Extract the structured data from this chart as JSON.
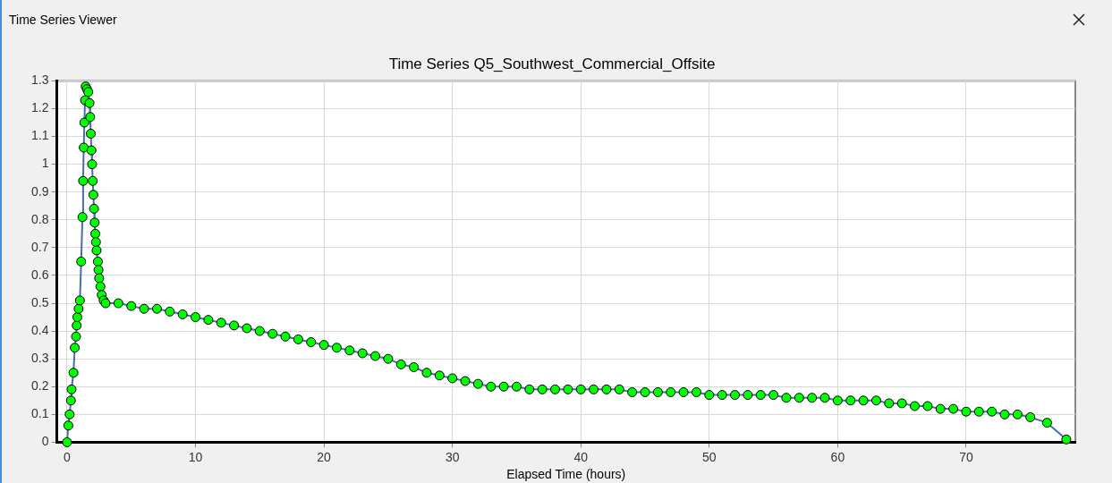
{
  "chart_data": {
    "type": "line",
    "title": "Time Series Q5_Southwest_Commercial_Offsite",
    "xlabel": "Elapsed Time (hours)",
    "annotations": [
      "Time Series Viewer"
    ],
    "x": [
      0,
      0.1,
      0.2,
      0.3,
      0.35,
      0.5,
      0.6,
      0.7,
      0.75,
      0.8,
      0.9,
      1.0,
      1.1,
      1.2,
      1.25,
      1.3,
      1.35,
      1.4,
      1.45,
      1.55,
      1.65,
      1.75,
      1.8,
      1.85,
      1.9,
      1.95,
      2.0,
      2.05,
      2.1,
      2.15,
      2.2,
      2.25,
      2.3,
      2.4,
      2.45,
      2.5,
      2.6,
      2.7,
      2.85,
      3.0,
      4,
      5,
      6,
      7,
      8,
      9,
      10,
      11,
      12,
      13,
      14,
      15,
      16,
      17,
      18,
      19,
      20,
      21,
      22,
      23,
      24,
      25,
      26,
      27,
      28,
      29,
      30,
      31,
      32,
      33,
      34,
      35,
      36,
      37,
      38,
      39,
      40,
      41,
      42,
      43,
      44,
      45,
      46,
      47,
      48,
      49,
      50,
      51,
      52,
      53,
      54,
      55,
      56,
      57,
      58,
      59,
      60,
      61,
      62,
      63,
      64,
      65,
      66,
      67,
      68,
      69,
      70,
      71,
      72,
      73,
      74,
      75,
      76.3,
      77.8
    ],
    "series": [
      {
        "color": "#00ff00",
        "values": [
          0,
          0.06,
          0.1,
          0.15,
          0.19,
          0.25,
          0.34,
          0.38,
          0.42,
          0.45,
          0.48,
          0.51,
          0.65,
          0.81,
          0.94,
          1.06,
          1.15,
          1.23,
          1.28,
          1.27,
          1.26,
          1.22,
          1.17,
          1.11,
          1.05,
          1.0,
          0.94,
          0.89,
          0.84,
          0.79,
          0.75,
          0.72,
          0.69,
          0.65,
          0.62,
          0.59,
          0.56,
          0.53,
          0.51,
          0.5,
          0.5,
          0.49,
          0.48,
          0.48,
          0.47,
          0.46,
          0.45,
          0.44,
          0.43,
          0.42,
          0.41,
          0.4,
          0.39,
          0.38,
          0.37,
          0.36,
          0.35,
          0.34,
          0.33,
          0.32,
          0.31,
          0.3,
          0.28,
          0.27,
          0.25,
          0.24,
          0.23,
          0.22,
          0.21,
          0.2,
          0.2,
          0.2,
          0.19,
          0.19,
          0.19,
          0.19,
          0.19,
          0.19,
          0.19,
          0.19,
          0.18,
          0.18,
          0.18,
          0.18,
          0.18,
          0.18,
          0.17,
          0.17,
          0.17,
          0.17,
          0.17,
          0.17,
          0.16,
          0.16,
          0.16,
          0.16,
          0.15,
          0.15,
          0.15,
          0.15,
          0.14,
          0.14,
          0.13,
          0.13,
          0.12,
          0.12,
          0.11,
          0.11,
          0.11,
          0.1,
          0.1,
          0.09,
          0.07,
          0.01
        ]
      }
    ],
    "xlim": [
      -0.8,
      78.5
    ],
    "xticks": [
      0,
      10,
      20,
      30,
      40,
      50,
      60,
      70
    ],
    "ylim": [
      0,
      1.3
    ],
    "yticks": [
      0,
      0.1,
      0.2,
      0.3,
      0.4,
      0.5,
      0.6,
      0.7,
      0.8,
      0.9,
      1,
      1.1,
      1.2,
      1.3
    ],
    "grid": true,
    "legend": false,
    "marker": "circle",
    "line_style": "solid"
  }
}
